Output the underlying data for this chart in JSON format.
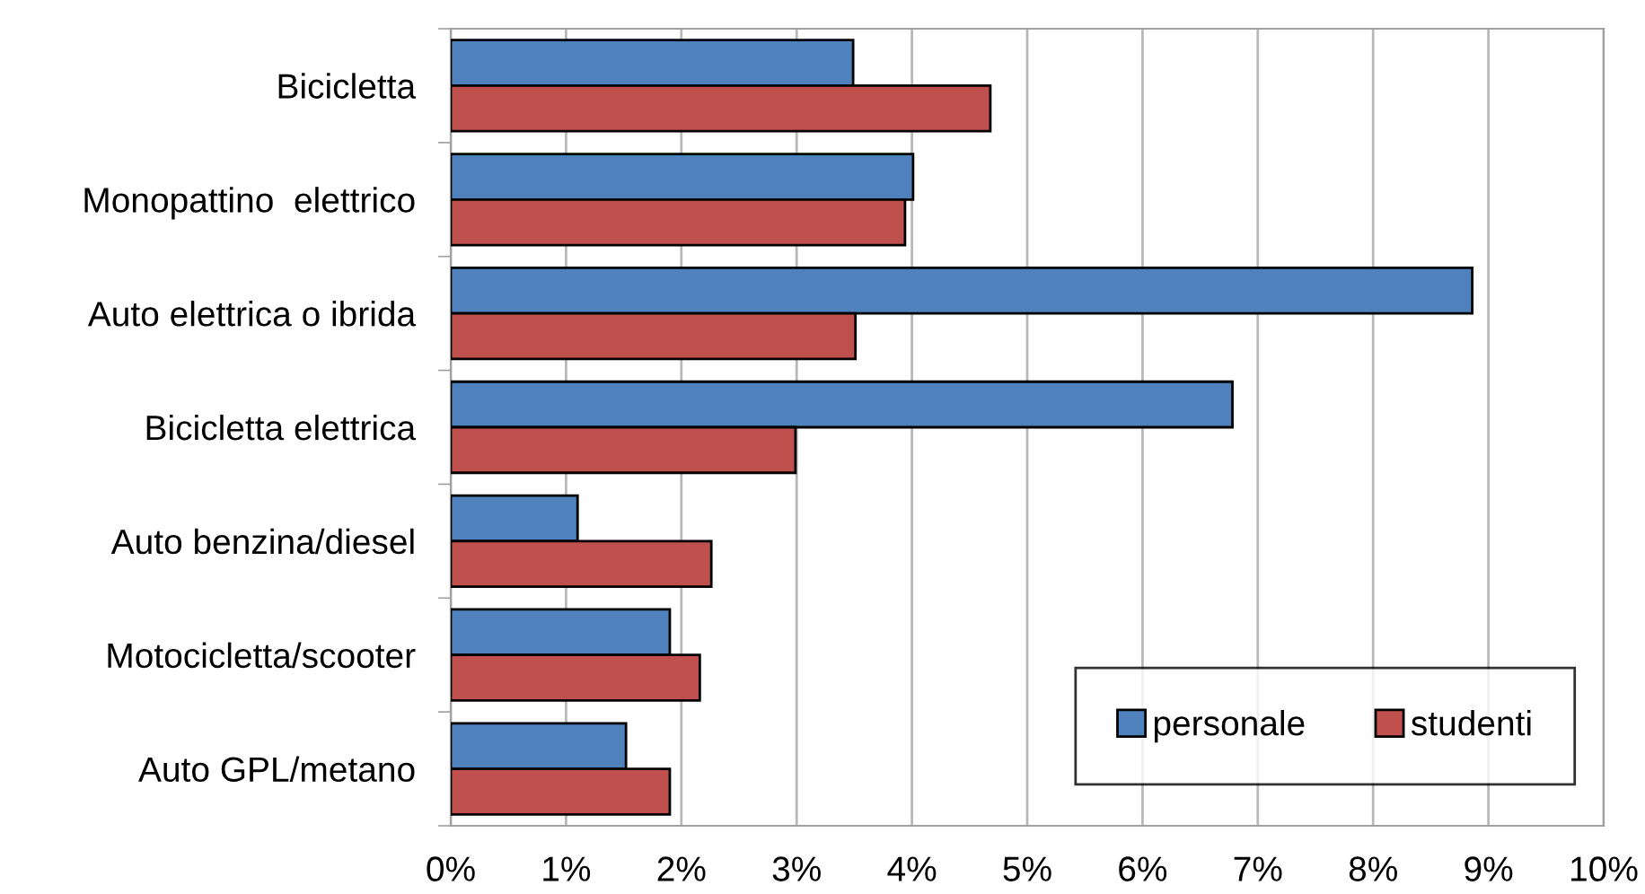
{
  "chart_data": {
    "type": "bar",
    "orientation": "horizontal",
    "categories": [
      "Bicicletta",
      "Monopattino  elettrico",
      "Auto elettrica o ibrida",
      "Bicicletta elettrica",
      "Auto benzina/diesel",
      "Motocicletta/scooter",
      "Auto GPL/metano"
    ],
    "series": [
      {
        "name": "personale",
        "color": "#4f81bd",
        "values": [
          3.49,
          4.01,
          8.86,
          6.78,
          1.1,
          1.9,
          1.52
        ]
      },
      {
        "name": "studenti",
        "color": "#c0504d",
        "values": [
          4.68,
          3.94,
          3.51,
          2.99,
          2.26,
          2.16,
          1.9
        ]
      }
    ],
    "xlim": [
      0,
      10
    ],
    "xticks": [
      {
        "value": 0,
        "label": "0%"
      },
      {
        "value": 1,
        "label": "1%"
      },
      {
        "value": 2,
        "label": "2%"
      },
      {
        "value": 3,
        "label": "3%"
      },
      {
        "value": 4,
        "label": "4%"
      },
      {
        "value": 5,
        "label": "5%"
      },
      {
        "value": 6,
        "label": "6%"
      },
      {
        "value": 7,
        "label": "7%"
      },
      {
        "value": 8,
        "label": "8%"
      },
      {
        "value": 9,
        "label": "9%"
      },
      {
        "value": 10,
        "label": "10%"
      }
    ],
    "grid": "x",
    "legend": "bottom right"
  }
}
